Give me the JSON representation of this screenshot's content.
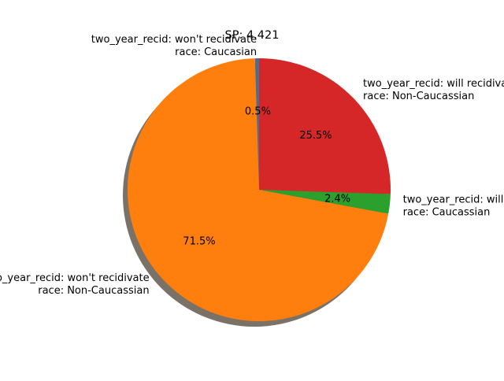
{
  "chart_data": {
    "type": "pie",
    "title": "SP: 4.421",
    "shadow": true,
    "counterclock": true,
    "start_angle_deg": 90,
    "slices": [
      {
        "label_lines": [
          "two_year_recid: won't recidivate",
          "race: Caucasian"
        ],
        "value": 0.5,
        "pct_label": "0.5%",
        "color": "#4c6d92"
      },
      {
        "label_lines": [
          "two_year_recid: won't recidivate",
          "race: Non-Caucassian"
        ],
        "value": 71.5,
        "pct_label": "71.5%",
        "color": "#ff7f0e"
      },
      {
        "label_lines": [
          "two_year_recid: will recidivate",
          "race: Caucassian"
        ],
        "value": 2.4,
        "pct_label": "2.4%",
        "color": "#2ca02c"
      },
      {
        "label_lines": [
          "two_year_recid: will recidivate",
          "race: Non-Caucassian"
        ],
        "value": 25.5,
        "pct_label": "25.5%",
        "color": "#d62728"
      }
    ]
  }
}
